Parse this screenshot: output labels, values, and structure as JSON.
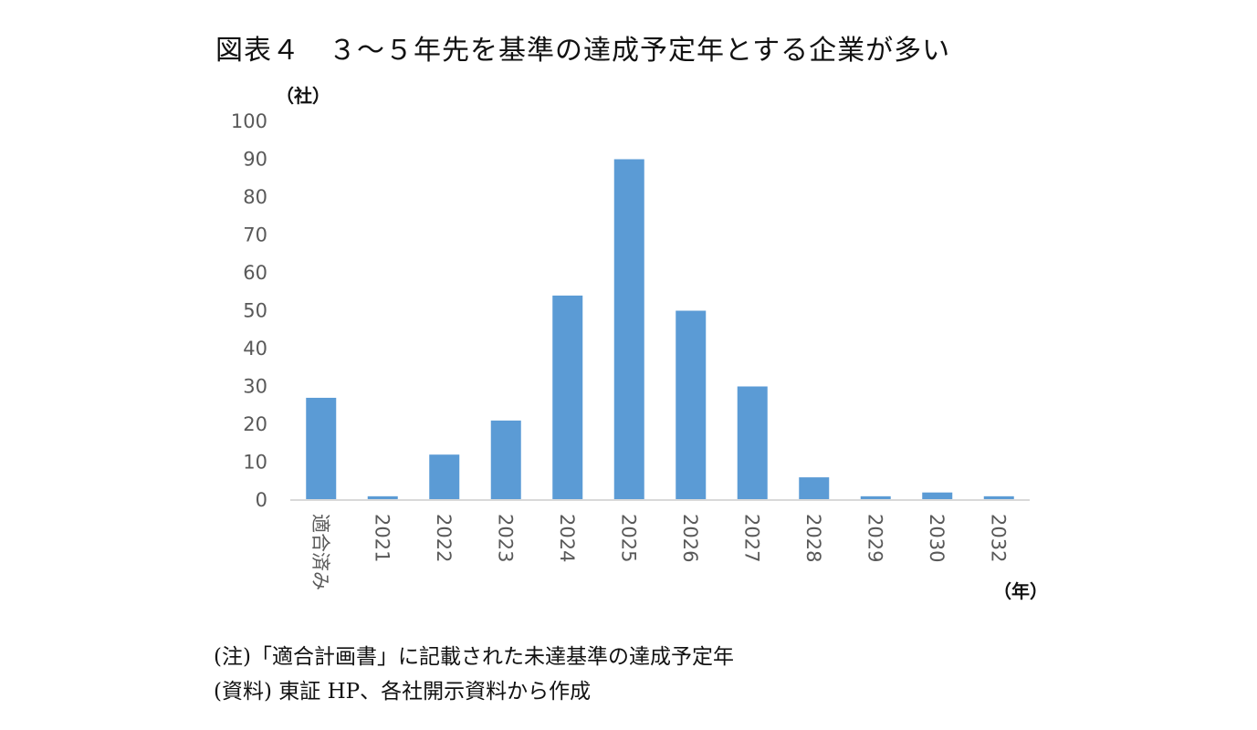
{
  "title": "図表４　３～５年先を基準の達成予定年とする企業が多い",
  "notes": {
    "note": "(注)「適合計画書」に記載された未達基準の達成予定年",
    "source": "(資料) 東証 HP、各社開示資料から作成"
  },
  "chart_data": {
    "type": "bar",
    "y_unit_label": "（社）",
    "x_unit_label": "（年）",
    "categories": [
      "適合済み",
      "2021",
      "2022",
      "2023",
      "2024",
      "2025",
      "2026",
      "2027",
      "2028",
      "2029",
      "2030",
      "2032"
    ],
    "values": [
      27,
      1,
      12,
      21,
      54,
      90,
      50,
      30,
      6,
      1,
      2,
      1
    ],
    "ylim": [
      0,
      100
    ],
    "yticks": [
      "0",
      "10",
      "20",
      "30",
      "40",
      "50",
      "60",
      "70",
      "80",
      "90",
      "100"
    ],
    "grid": false,
    "legend": "none",
    "bar_color": "#5b9bd5",
    "axis_color": "#d9d9d9"
  }
}
